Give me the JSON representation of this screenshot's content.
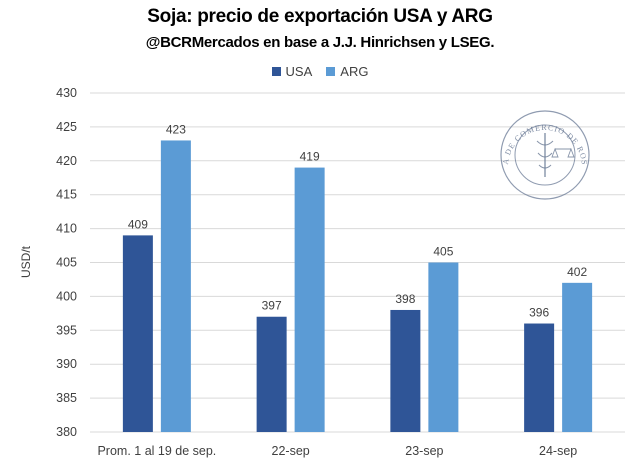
{
  "chart_data": {
    "type": "bar",
    "title": "Soja: precio de exportación USA y ARG",
    "subtitle": "@BCRMercados en base a J.J. Hinrichsen y LSEG.",
    "categories": [
      "Prom. 1 al 19 de sep.",
      "22-sep",
      "23-sep",
      "24-sep"
    ],
    "series": [
      {
        "name": "USA",
        "color": "#2f5597",
        "values": [
          409,
          397,
          398,
          396
        ],
        "labels": [
          "409",
          "397",
          "398",
          "396"
        ]
      },
      {
        "name": "ARG",
        "color": "#5b9bd5",
        "values": [
          423,
          419,
          405,
          402
        ],
        "labels": [
          "423",
          "419",
          "405",
          "402"
        ]
      }
    ],
    "xlabel": "",
    "ylabel": "USD/t",
    "ylim": [
      380,
      430
    ],
    "yticks": [
      380,
      385,
      390,
      395,
      400,
      405,
      410,
      415,
      420,
      425,
      430
    ],
    "grid": true,
    "legend": "top-center"
  },
  "watermark": {
    "text": "BOLSA DE COMERCIO DE ROSARIO",
    "color": "#6a7a95"
  }
}
